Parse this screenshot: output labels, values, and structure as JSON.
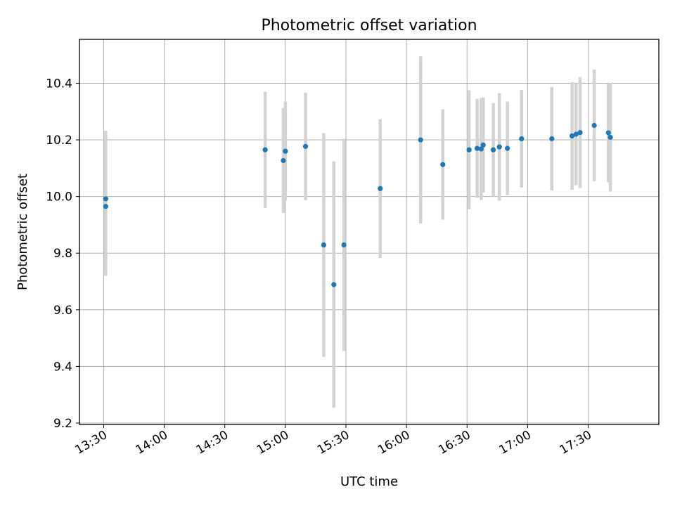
{
  "chart_data": {
    "type": "scatter",
    "title": "Photometric offset variation",
    "xlabel": "UTC time",
    "ylabel": "Photometric offset",
    "x_ticks": [
      "13:30",
      "14:00",
      "14:30",
      "15:00",
      "15:30",
      "16:00",
      "16:30",
      "17:00",
      "17:30"
    ],
    "y_ticks": [
      "9.2",
      "9.4",
      "9.6",
      "9.8",
      "10.0",
      "10.2",
      "10.4"
    ],
    "xlim": [
      "13:18",
      "18:05"
    ],
    "ylim": [
      9.195,
      10.555
    ],
    "grid": true,
    "marker_color": "#1f77b4",
    "errorbar_color": "#d3d3d3",
    "points": [
      {
        "x": "13:31",
        "y": 9.992,
        "err": 0.24
      },
      {
        "x": "13:31",
        "y": 9.965,
        "err": 0.245
      },
      {
        "x": "14:50",
        "y": 10.165,
        "err": 0.205
      },
      {
        "x": "14:59",
        "y": 10.127,
        "err": 0.185
      },
      {
        "x": "15:00",
        "y": 10.16,
        "err": 0.175
      },
      {
        "x": "15:10",
        "y": 10.177,
        "err": 0.19
      },
      {
        "x": "15:19",
        "y": 9.829,
        "err": 0.395
      },
      {
        "x": "15:24",
        "y": 9.689,
        "err": 0.435
      },
      {
        "x": "15:29",
        "y": 9.829,
        "err": 0.375
      },
      {
        "x": "15:47",
        "y": 10.028,
        "err": 0.245
      },
      {
        "x": "16:07",
        "y": 10.2,
        "err": 0.295
      },
      {
        "x": "16:18",
        "y": 10.113,
        "err": 0.195
      },
      {
        "x": "16:31",
        "y": 10.165,
        "err": 0.21
      },
      {
        "x": "16:35",
        "y": 10.17,
        "err": 0.175
      },
      {
        "x": "16:37",
        "y": 10.168,
        "err": 0.18
      },
      {
        "x": "16:38",
        "y": 10.182,
        "err": 0.168
      },
      {
        "x": "16:43",
        "y": 10.165,
        "err": 0.165
      },
      {
        "x": "16:46",
        "y": 10.175,
        "err": 0.19
      },
      {
        "x": "16:50",
        "y": 10.17,
        "err": 0.165
      },
      {
        "x": "16:57",
        "y": 10.204,
        "err": 0.172
      },
      {
        "x": "17:12",
        "y": 10.204,
        "err": 0.183
      },
      {
        "x": "17:22",
        "y": 10.214,
        "err": 0.19
      },
      {
        "x": "17:24",
        "y": 10.22,
        "err": 0.18
      },
      {
        "x": "17:26",
        "y": 10.226,
        "err": 0.196
      },
      {
        "x": "17:33",
        "y": 10.251,
        "err": 0.197
      },
      {
        "x": "17:40",
        "y": 10.225,
        "err": 0.175
      },
      {
        "x": "17:41",
        "y": 10.209,
        "err": 0.192
      }
    ]
  }
}
